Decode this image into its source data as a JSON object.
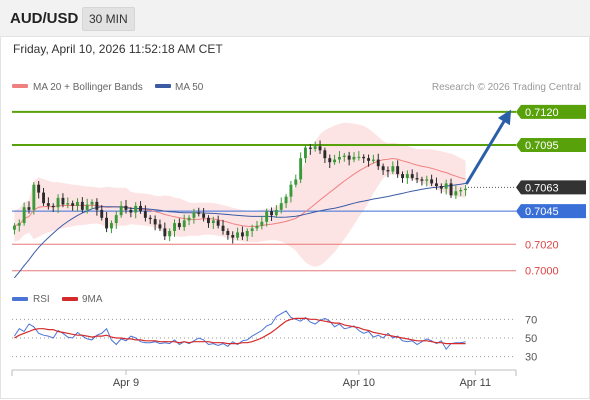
{
  "header": {
    "symbol": "AUD/USD",
    "timeframe": "30 MIN"
  },
  "datetime": "Friday, April 10, 2026 11:52:18 AM CET",
  "legend": {
    "ma20_bb": {
      "label": "MA 20 + Bollinger Bands",
      "color": "#f08080"
    },
    "ma50": {
      "label": "MA 50",
      "color": "#3b5ba5"
    }
  },
  "credit": "Research © 2026 Trading Central",
  "rsi_legend": {
    "rsi": {
      "label": "RSI",
      "color": "#4a74d6"
    },
    "ma9": {
      "label": "9MA",
      "color": "#d42a2a"
    }
  },
  "colors": {
    "up": "#3a9a3a",
    "down": "#2b2b2b",
    "target": "#59a10a",
    "pivot": "#3a6fd8",
    "support": "#e87878",
    "current": "#333333",
    "band": "#fde4e4"
  },
  "chart_data": {
    "type": "candlestick",
    "ylim": [
      0.6993,
      0.7129
    ],
    "levels": [
      {
        "value": 0.712,
        "label": "0.7120",
        "kind": "target"
      },
      {
        "value": 0.7095,
        "label": "0.7095",
        "kind": "target"
      },
      {
        "value": 0.7063,
        "label": "0.7063",
        "kind": "current"
      },
      {
        "value": 0.7045,
        "label": "0.7045",
        "kind": "pivot"
      },
      {
        "value": 0.702,
        "label": "0.7020",
        "kind": "support"
      },
      {
        "value": 0.7,
        "label": "0.7000",
        "kind": "support"
      }
    ],
    "x_ticks": [
      {
        "label": "Apr 9",
        "index": 23
      },
      {
        "label": "Apr 10",
        "index": 71
      },
      {
        "label": "Apr 11",
        "index": 95
      }
    ],
    "closes": [
      0.7034,
      0.7036,
      0.7048,
      0.7046,
      0.7065,
      0.7059,
      0.7051,
      0.7049,
      0.7048,
      0.7055,
      0.705,
      0.7051,
      0.7049,
      0.7052,
      0.7046,
      0.705,
      0.7052,
      0.7046,
      0.704,
      0.7032,
      0.7036,
      0.7042,
      0.7049,
      0.7046,
      0.7044,
      0.7049,
      0.7045,
      0.704,
      0.7039,
      0.7035,
      0.7032,
      0.7026,
      0.703,
      0.7036,
      0.7033,
      0.7038,
      0.704,
      0.7044,
      0.7043,
      0.704,
      0.7036,
      0.7038,
      0.7034,
      0.703,
      0.7027,
      0.7025,
      0.7029,
      0.7026,
      0.703,
      0.7032,
      0.7034,
      0.7037,
      0.7045,
      0.7042,
      0.7046,
      0.7051,
      0.7056,
      0.7065,
      0.7069,
      0.7085,
      0.7093,
      0.7092,
      0.7094,
      0.7091,
      0.7085,
      0.7082,
      0.7084,
      0.7086,
      0.7087,
      0.7084,
      0.7086,
      0.7086,
      0.7085,
      0.7083,
      0.7084,
      0.7079,
      0.7076,
      0.7075,
      0.7079,
      0.7073,
      0.707,
      0.7073,
      0.707,
      0.7069,
      0.7068,
      0.7069,
      0.7066,
      0.7064,
      0.7062,
      0.7066,
      0.7057,
      0.706,
      0.7061,
      0.7062
    ],
    "rsi": {
      "levels": [
        70,
        50,
        30
      ],
      "ylim": [
        20,
        80
      ],
      "rsi": [
        52,
        60,
        57,
        65,
        62,
        55,
        53,
        52,
        50,
        58,
        55,
        51,
        50,
        56,
        52,
        49,
        48,
        53,
        55,
        60,
        48,
        43,
        49,
        47,
        52,
        50,
        46,
        45,
        45,
        46,
        44,
        45,
        44,
        48,
        43,
        46,
        44,
        47,
        50,
        48,
        43,
        44,
        42,
        44,
        41,
        46,
        43,
        47,
        48,
        52,
        55,
        58,
        63,
        65,
        73,
        76,
        79,
        72,
        70,
        68,
        72,
        67,
        65,
        69,
        71,
        68,
        62,
        65,
        60,
        61,
        63,
        58,
        55,
        57,
        51,
        53,
        50,
        55,
        50,
        52,
        47,
        46,
        47,
        43,
        46,
        49,
        47,
        44,
        47,
        38,
        44,
        45,
        45,
        46
      ],
      "ma9": [
        50,
        53,
        55,
        57,
        59,
        60,
        60,
        59,
        59,
        57,
        56,
        55,
        54,
        53,
        53,
        52,
        51,
        52,
        52,
        53,
        51,
        50,
        50,
        49,
        49,
        48,
        48,
        47,
        47,
        47,
        46,
        46,
        46,
        46,
        45,
        46,
        45,
        46,
        46,
        46,
        46,
        45,
        45,
        45,
        44,
        44,
        44,
        45,
        45,
        46,
        48,
        50,
        53,
        56,
        60,
        64,
        68,
        70,
        71,
        71,
        71,
        70,
        70,
        69,
        68,
        67,
        66,
        66,
        64,
        63,
        62,
        61,
        59,
        58,
        56,
        55,
        54,
        53,
        52,
        51,
        50,
        49,
        48,
        47,
        47,
        47,
        46,
        45,
        45,
        44,
        44,
        44,
        44,
        44
      ]
    }
  }
}
